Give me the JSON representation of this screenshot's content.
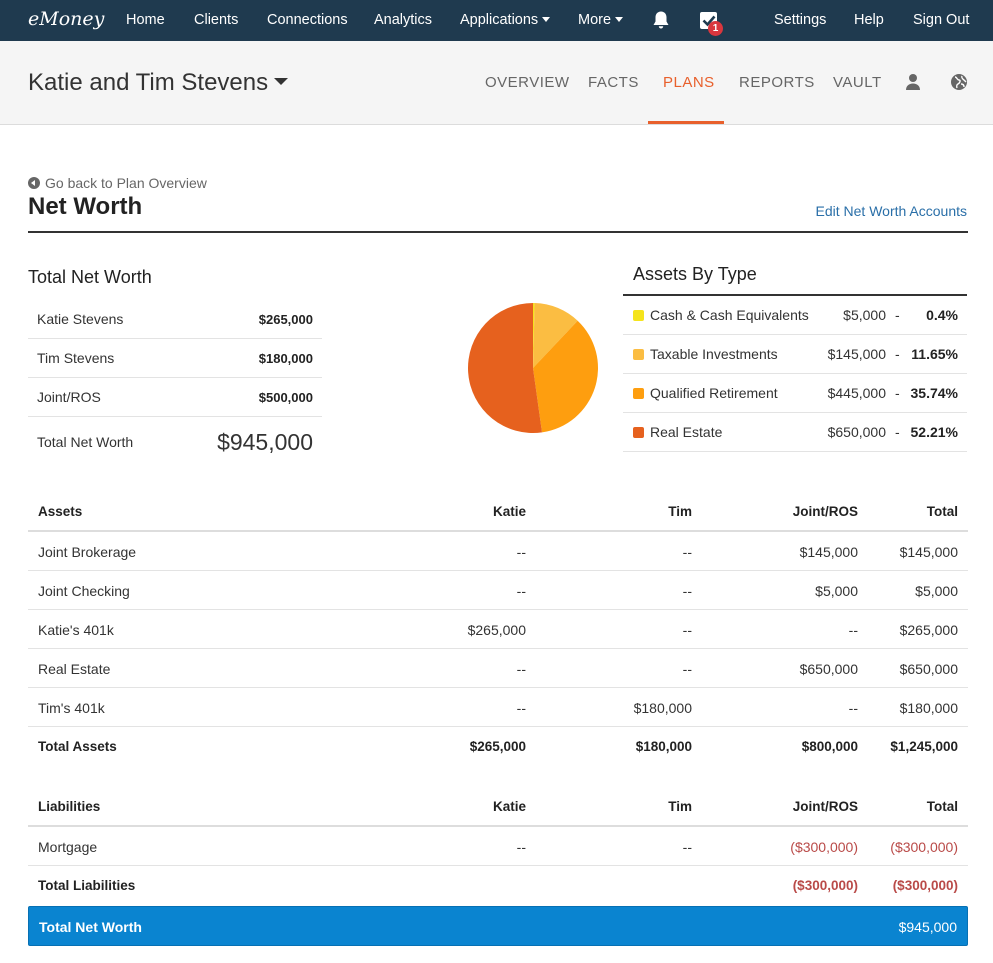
{
  "nav": {
    "logo": "eMoney",
    "items": [
      "Home",
      "Clients",
      "Connections",
      "Analytics",
      "Applications",
      "More"
    ],
    "notification_count": "1",
    "right_items": [
      "Settings",
      "Help",
      "Sign Out"
    ]
  },
  "client": {
    "name": "Katie and Tim Stevens"
  },
  "tabs": [
    "OVERVIEW",
    "FACTS",
    "PLANS",
    "REPORTS",
    "VAULT"
  ],
  "active_tab": "PLANS",
  "page": {
    "back_link": "Go back to Plan Overview",
    "title": "Net Worth",
    "edit_link": "Edit Net Worth Accounts"
  },
  "summary": {
    "title": "Total Net Worth",
    "rows": [
      {
        "label": "Katie Stevens",
        "value": "$265,000"
      },
      {
        "label": "Tim Stevens",
        "value": "$180,000"
      },
      {
        "label": "Joint/ROS",
        "value": "$500,000"
      }
    ],
    "total_label": "Total Net Worth",
    "total_value": "$945,000"
  },
  "assets_by_type": {
    "title": "Assets By Type",
    "rows": [
      {
        "label": "Cash & Cash Equivalents",
        "amount": "$5,000",
        "sep": "-",
        "pct": "0.4%",
        "color": "#f5e41c"
      },
      {
        "label": "Taxable Investments",
        "amount": "$145,000",
        "sep": "-",
        "pct": "11.65%",
        "color": "#fbbd42"
      },
      {
        "label": "Qualified Retirement",
        "amount": "$445,000",
        "sep": "-",
        "pct": "35.74%",
        "color": "#fe9e0f"
      },
      {
        "label": "Real Estate",
        "amount": "$650,000",
        "sep": "-",
        "pct": "52.21%",
        "color": "#e6611e"
      }
    ],
    "pie_values": [
      0.4,
      11.65,
      35.74,
      52.21
    ]
  },
  "assets": {
    "headers": [
      "Assets",
      "Katie",
      "Tim",
      "Joint/ROS",
      "Total"
    ],
    "rows": [
      [
        "Joint Brokerage",
        "--",
        "--",
        "$145,000",
        "$145,000"
      ],
      [
        "Joint Checking",
        "--",
        "--",
        "$5,000",
        "$5,000"
      ],
      [
        "Katie's 401k",
        "$265,000",
        "--",
        "--",
        "$265,000"
      ],
      [
        "Real Estate",
        "--",
        "--",
        "$650,000",
        "$650,000"
      ],
      [
        "Tim's 401k",
        "--",
        "$180,000",
        "--",
        "$180,000"
      ]
    ],
    "total": [
      "Total Assets",
      "$265,000",
      "$180,000",
      "$800,000",
      "$1,245,000"
    ]
  },
  "liabilities": {
    "headers": [
      "Liabilities",
      "Katie",
      "Tim",
      "Joint/ROS",
      "Total"
    ],
    "rows": [
      [
        "Mortgage",
        "--",
        "--",
        "($300,000)",
        "($300,000)"
      ]
    ],
    "total": [
      "Total Liabilities",
      "",
      "",
      "($300,000)",
      "($300,000)"
    ]
  },
  "net_worth_bar": {
    "label": "Total Net Worth",
    "value": "$945,000"
  }
}
